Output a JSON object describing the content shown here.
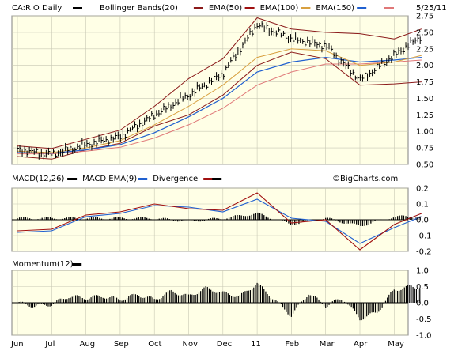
{
  "chart_data": [
    {
      "type": "candlestick",
      "symbol_label": "CA:RIO Daily",
      "date_label": "5/25/11",
      "legend": [
        {
          "name": "Bollinger Bands(20)",
          "color": "#8b1a1a"
        },
        {
          "name": "EMA(50)",
          "color": "#a01010"
        },
        {
          "name": "EMA(100)",
          "color": "#d8a040"
        },
        {
          "name": "EMA(150)",
          "color": "#2060d0"
        }
      ],
      "legend_last_swatch_color": "#e07878",
      "ylim": [
        0.5,
        2.75
      ],
      "yticks": [
        "2.75",
        "2.50",
        "2.25",
        "2.00",
        "1.75",
        "1.50",
        "1.25",
        "1.00",
        "0.75",
        "0.50"
      ],
      "ytick_values": [
        2.75,
        2.5,
        2.25,
        2.0,
        1.75,
        1.5,
        1.25,
        1.0,
        0.75,
        0.5
      ],
      "watermark": "©BigCharts.com",
      "months": [
        "Jun",
        "Jul",
        "Aug",
        "Sep",
        "Oct",
        "Nov",
        "Dec",
        "11",
        "Feb",
        "Mar",
        "Apr",
        "May"
      ],
      "price_x": [
        0,
        1,
        2,
        3,
        4,
        5,
        6,
        7,
        8,
        9,
        10,
        11,
        11.8
      ],
      "price_close": [
        0.72,
        0.65,
        0.8,
        0.92,
        1.25,
        1.55,
        1.88,
        2.62,
        2.4,
        2.3,
        1.78,
        2.15,
        2.45
      ],
      "bb_upper_x": [
        0,
        1,
        2,
        3,
        4,
        5,
        6,
        7,
        8,
        9,
        10,
        11,
        11.8
      ],
      "bb_upper": [
        0.78,
        0.74,
        0.88,
        1.02,
        1.38,
        1.8,
        2.1,
        2.72,
        2.55,
        2.5,
        2.48,
        2.4,
        2.55
      ],
      "bb_lower": [
        0.62,
        0.58,
        0.72,
        0.82,
        1.08,
        1.25,
        1.55,
        2.0,
        2.2,
        2.1,
        1.7,
        1.72,
        1.75
      ],
      "ema50": [
        0.7,
        0.68,
        0.75,
        0.86,
        1.1,
        1.38,
        1.7,
        2.12,
        2.25,
        2.22,
        2.0,
        2.05,
        2.15
      ],
      "ema100": [
        0.68,
        0.67,
        0.72,
        0.8,
        0.98,
        1.22,
        1.5,
        1.9,
        2.05,
        2.12,
        2.05,
        2.08,
        2.12
      ],
      "ema150": [
        0.66,
        0.66,
        0.7,
        0.76,
        0.9,
        1.1,
        1.35,
        1.7,
        1.9,
        2.02,
        2.02,
        2.05,
        2.08
      ]
    },
    {
      "type": "line",
      "title": "MACD(12,26)",
      "legend": [
        {
          "name": "MACD(12,26)",
          "color": "#000000"
        },
        {
          "name": "MACD EMA(9)",
          "color": "#2060d0"
        },
        {
          "name": "Divergence",
          "color": "#a01010"
        }
      ],
      "legend_last_swatch_color": "#000000",
      "ylim": [
        -0.2,
        0.2
      ],
      "yticks": [
        "0.2",
        "0.1",
        "0.0",
        "-0.1",
        "-0.2"
      ],
      "ytick_values": [
        0.2,
        0.1,
        0.0,
        -0.1,
        -0.2
      ],
      "x": [
        0,
        1,
        2,
        3,
        4,
        5,
        6,
        7,
        8,
        9,
        10,
        11,
        11.8
      ],
      "macd": [
        -0.07,
        -0.06,
        0.03,
        0.05,
        0.1,
        0.07,
        0.06,
        0.17,
        -0.02,
        0.0,
        -0.19,
        -0.03,
        0.04
      ],
      "signal": [
        -0.08,
        -0.07,
        0.02,
        0.04,
        0.09,
        0.08,
        0.05,
        0.13,
        0.01,
        -0.01,
        -0.15,
        -0.05,
        0.02
      ],
      "divergence": [
        0.01,
        0.01,
        0.01,
        0.01,
        0.01,
        -0.01,
        0.01,
        0.04,
        -0.03,
        0.01,
        -0.04,
        0.02,
        0.02
      ]
    },
    {
      "type": "area",
      "title": "Momentum(12)",
      "legend": [
        {
          "name": "Momentum(12)",
          "color": "#000000"
        }
      ],
      "ylim": [
        -1.0,
        1.0
      ],
      "yticks": [
        "1.0",
        "0.5",
        "0.0",
        "-0.5",
        "-1.0"
      ],
      "ytick_values": [
        1.0,
        0.5,
        0.0,
        -0.5,
        -1.0
      ],
      "x": [
        0,
        0.5,
        1,
        1.5,
        2,
        2.5,
        3,
        3.5,
        4,
        4.5,
        5,
        5.5,
        6,
        6.5,
        7,
        7.5,
        8,
        8.5,
        9,
        9.5,
        10,
        10.5,
        11,
        11.5,
        11.8
      ],
      "momentum": [
        0.0,
        -0.1,
        -0.05,
        0.2,
        0.15,
        0.2,
        0.1,
        0.25,
        0.1,
        0.35,
        0.2,
        0.45,
        0.3,
        0.2,
        0.6,
        0.1,
        -0.4,
        0.3,
        -0.1,
        0.15,
        -0.5,
        -0.3,
        0.4,
        0.5,
        0.45
      ]
    }
  ]
}
